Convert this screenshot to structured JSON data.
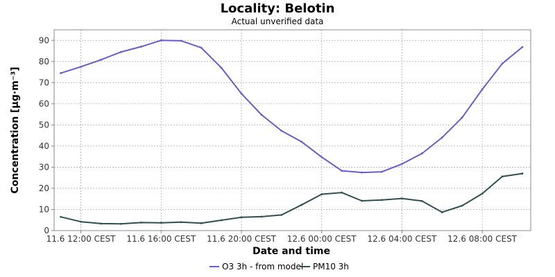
{
  "chart_data": {
    "type": "line",
    "title": "Locality: Belotin",
    "subtitle": "Actual unverified data",
    "xlabel": "Date and time",
    "ylabel": "Concentration [µg·m⁻³]",
    "ylim": [
      0,
      95
    ],
    "yticks": [
      0,
      10,
      20,
      30,
      40,
      50,
      60,
      70,
      80,
      90
    ],
    "x": [
      "2023-06-11 11:00",
      "2023-06-11 12:00",
      "2023-06-11 13:00",
      "2023-06-11 14:00",
      "2023-06-11 15:00",
      "2023-06-11 16:00",
      "2023-06-11 17:00",
      "2023-06-11 18:00",
      "2023-06-11 19:00",
      "2023-06-11 20:00",
      "2023-06-11 21:00",
      "2023-06-11 22:00",
      "2023-06-11 23:00",
      "2023-06-12 00:00",
      "2023-06-12 01:00",
      "2023-06-12 02:00",
      "2023-06-12 03:00",
      "2023-06-12 04:00",
      "2023-06-12 05:00",
      "2023-06-12 06:00",
      "2023-06-12 07:00",
      "2023-06-12 08:00",
      "2023-06-12 09:00",
      "2023-06-12 10:00"
    ],
    "xlim": [
      "2023-06-11 10:40",
      "2023-06-12 10:25"
    ],
    "xticks": [
      {
        "at": "2023-06-11 12:00",
        "label": "11.6 12:00 CEST"
      },
      {
        "at": "2023-06-11 16:00",
        "label": "11.6 16:00 CEST"
      },
      {
        "at": "2023-06-11 20:00",
        "label": "11.6 20:00 CEST"
      },
      {
        "at": "2023-06-12 00:00",
        "label": "12.6 00:00 CEST"
      },
      {
        "at": "2023-06-12 04:00",
        "label": "12.6 04:00 CEST"
      },
      {
        "at": "2023-06-12 08:00",
        "label": "12.6 08:00 CEST"
      }
    ],
    "series": [
      {
        "name": "O3 3h - from model",
        "color": "#6a5acd",
        "values": [
          74.5,
          77.5,
          80.8,
          84.5,
          87.0,
          90.0,
          89.8,
          86.5,
          77.0,
          64.8,
          54.8,
          47.2,
          42.0,
          34.8,
          28.3,
          27.5,
          27.8,
          31.5,
          36.5,
          44.0,
          53.5,
          66.8,
          79.0,
          86.8
        ]
      },
      {
        "name": "PM10 3h",
        "color": "#2f4f4f",
        "values": [
          6.5,
          4.2,
          3.3,
          3.2,
          3.8,
          3.7,
          4.0,
          3.5,
          4.9,
          6.3,
          6.6,
          7.4,
          12.2,
          17.2,
          18.0,
          14.1,
          14.5,
          15.2,
          14.0,
          8.7,
          11.8,
          17.5,
          25.6,
          27.0
        ]
      }
    ],
    "grid": true,
    "legend": "bottom-center"
  }
}
